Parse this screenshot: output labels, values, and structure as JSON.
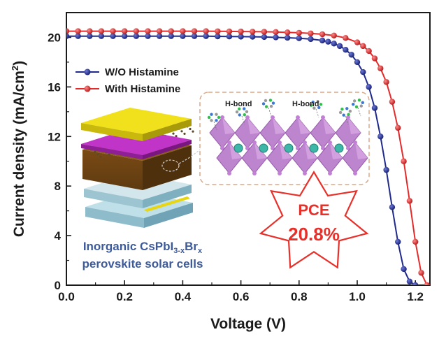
{
  "chart_data": {
    "type": "line",
    "xlabel": "Voltage (V)",
    "ylabel_main": "Current density (mA/cm",
    "ylabel_sup": "2",
    "ylabel_close": ")",
    "xlim": [
      0.0,
      1.25
    ],
    "ylim": [
      0,
      22
    ],
    "xticks": [
      0.0,
      0.2,
      0.4,
      0.6,
      0.8,
      1.0,
      1.2
    ],
    "xtick_labels": [
      "0.0",
      "0.2",
      "0.4",
      "0.6",
      "0.8",
      "1.0",
      "1.2"
    ],
    "yticks": [
      0,
      4,
      8,
      12,
      16,
      20
    ],
    "ytick_labels": [
      "0",
      "4",
      "8",
      "12",
      "16",
      "20"
    ],
    "grid": false,
    "legend_position": "top-left",
    "series": [
      {
        "name": "W/O Histamine",
        "color": "#1f2a8c",
        "marker": "circle",
        "x": [
          0,
          0.04,
          0.08,
          0.12,
          0.16,
          0.2,
          0.24,
          0.28,
          0.32,
          0.36,
          0.4,
          0.44,
          0.48,
          0.52,
          0.56,
          0.6,
          0.64,
          0.68,
          0.72,
          0.76,
          0.8,
          0.84,
          0.88,
          0.9,
          0.92,
          0.94,
          0.96,
          0.98,
          1.0,
          1.02,
          1.04,
          1.06,
          1.08,
          1.1,
          1.12,
          1.14,
          1.16,
          1.18,
          1.2
        ],
        "y": [
          20.1,
          20.1,
          20.1,
          20.1,
          20.1,
          20.1,
          20.1,
          20.1,
          20.1,
          20.1,
          20.1,
          20.1,
          20.1,
          20.08,
          20.07,
          20.06,
          20.05,
          20.03,
          20.0,
          19.97,
          19.93,
          19.86,
          19.75,
          19.65,
          19.5,
          19.3,
          19.0,
          18.6,
          18.0,
          17.2,
          16.0,
          14.3,
          12.0,
          9.3,
          6.3,
          3.5,
          1.3,
          0.3,
          0.0
        ]
      },
      {
        "name": "With Histamine",
        "color": "#e32b2b",
        "marker": "circle",
        "x": [
          0,
          0.04,
          0.08,
          0.12,
          0.16,
          0.2,
          0.24,
          0.28,
          0.32,
          0.36,
          0.4,
          0.44,
          0.48,
          0.52,
          0.56,
          0.6,
          0.64,
          0.68,
          0.72,
          0.76,
          0.8,
          0.84,
          0.88,
          0.92,
          0.96,
          1.0,
          1.02,
          1.04,
          1.06,
          1.08,
          1.1,
          1.12,
          1.14,
          1.16,
          1.18,
          1.2,
          1.22,
          1.24
        ],
        "y": [
          20.5,
          20.5,
          20.5,
          20.5,
          20.5,
          20.5,
          20.5,
          20.5,
          20.5,
          20.5,
          20.5,
          20.5,
          20.5,
          20.49,
          20.48,
          20.47,
          20.46,
          20.45,
          20.43,
          20.4,
          20.37,
          20.32,
          20.25,
          20.15,
          19.95,
          19.6,
          19.3,
          18.9,
          18.3,
          17.5,
          16.4,
          14.8,
          12.7,
          10.0,
          6.8,
          3.5,
          1.0,
          0.0
        ]
      }
    ]
  },
  "inset": {
    "hbond_left": "H-bond",
    "hbond_right": "H-bond",
    "cells_line1_main": "Inorganic CsPbI",
    "cells_line1_sub": "3-x",
    "cells_line1_mid": "Br",
    "cells_line1_subx": "x",
    "cells_line2": "perovskite solar cells",
    "pce_label": "PCE",
    "pce_value": "20.8%"
  },
  "colors": {
    "axis": "#1a1a1a",
    "gold": "#e8d612",
    "purple": "#c035c8",
    "brown": "#8a5a1e",
    "glass": "#9fc8d6",
    "octahedra": "#b77bc9",
    "cesium": "#3fb7a8",
    "star_fill": "#ffffff",
    "star_edge": "#e8302a"
  }
}
